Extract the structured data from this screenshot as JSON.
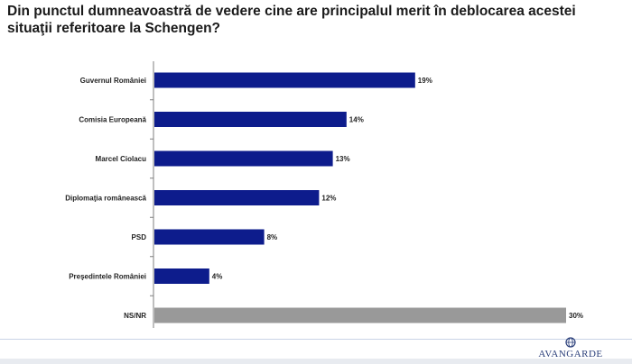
{
  "title": "Din punctul dumneavoastră de vedere cine are principalul merit în deblocarea acestei situaţii referitoare la Schengen?",
  "colors": {
    "primary": "#0d1c8c",
    "secondary": "#999999"
  },
  "chart_data": {
    "type": "bar",
    "orientation": "horizontal",
    "categories": [
      "Guvernul României",
      "Comisia Europeană",
      "Marcel Ciolacu",
      "Diplomaţia românească",
      "PSD",
      "Preşedintele României",
      "NS/NR"
    ],
    "values": [
      19,
      14,
      13,
      12,
      8,
      4,
      30
    ],
    "value_labels": [
      "19%",
      "14%",
      "13%",
      "12%",
      "8%",
      "4%",
      "30%"
    ],
    "highlight": [
      false,
      false,
      false,
      false,
      false,
      false,
      true
    ],
    "xlim": [
      0,
      30
    ],
    "grid": false,
    "legend": "none"
  },
  "logo": {
    "text": "AVANGARDE",
    "icon": "globe-icon"
  }
}
